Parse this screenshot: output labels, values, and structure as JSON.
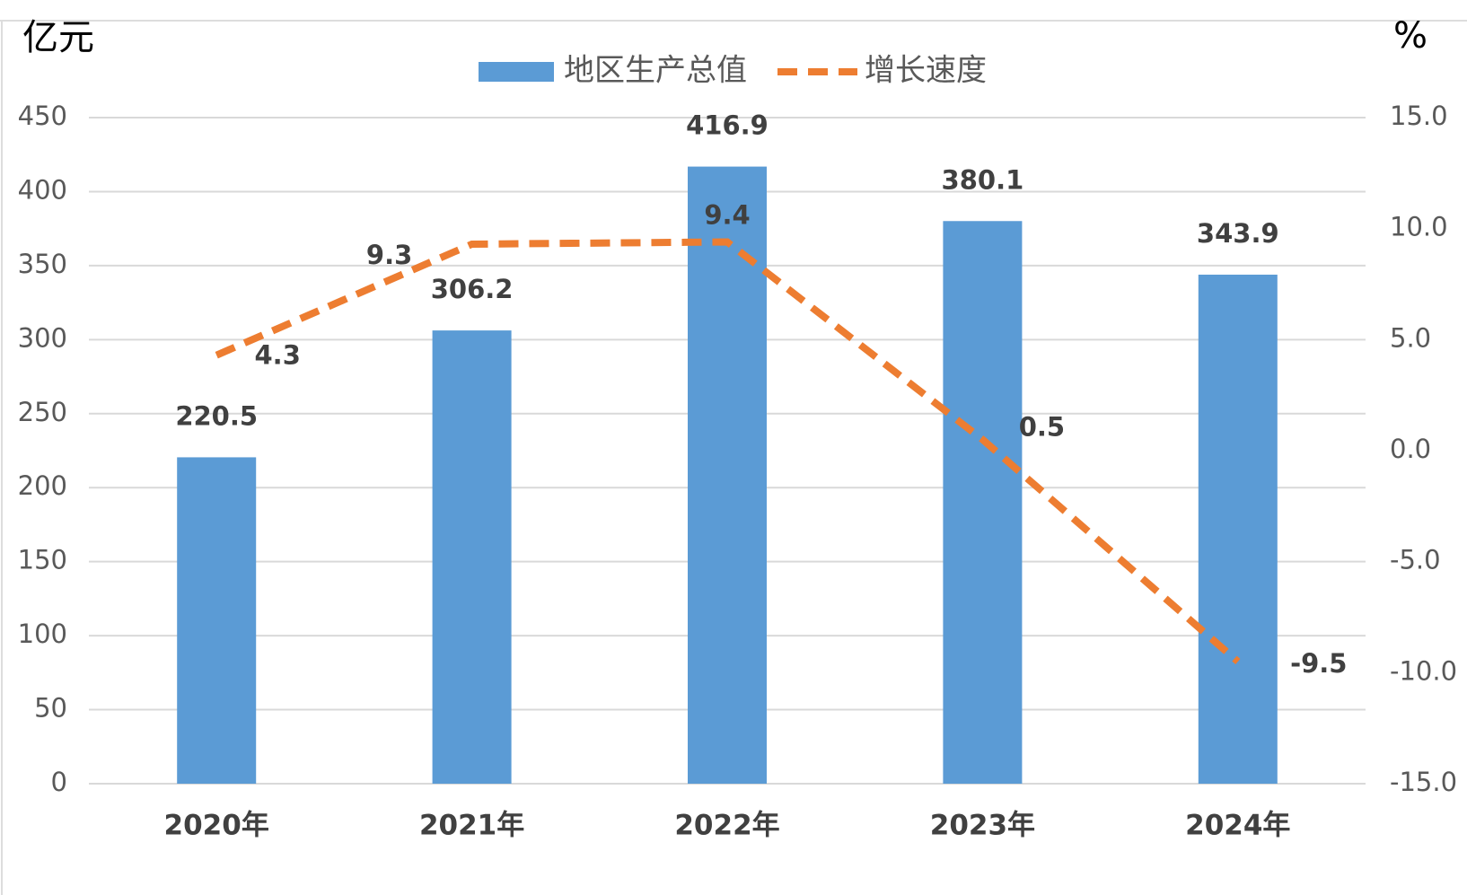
{
  "chart_data": {
    "type": "bar",
    "y_label": "亿元",
    "y2_label": "%",
    "categories": [
      "2020年",
      "2021年",
      "2022年",
      "2023年",
      "2024年"
    ],
    "series": [
      {
        "name": "地区生产总值",
        "type": "bar",
        "color": "#5b9bd5",
        "values": [
          220.5,
          306.2,
          416.9,
          380.1,
          343.9
        ]
      },
      {
        "name": "增长速度",
        "type": "line",
        "axis": "y2",
        "color": "#ed7d31",
        "dashed": true,
        "values": [
          4.3,
          9.3,
          9.4,
          0.5,
          -9.5
        ]
      }
    ],
    "ylim": [
      0,
      450
    ],
    "yticks": [
      0,
      50,
      100,
      150,
      200,
      250,
      300,
      350,
      400,
      450
    ],
    "y2lim": [
      -15,
      15
    ],
    "y2ticks": [
      {
        "value": -15,
        "label": "-15.0"
      },
      {
        "value": -10,
        "label": "-10.0"
      },
      {
        "value": -5,
        "label": "-5.0"
      },
      {
        "value": 0,
        "label": "0.0"
      },
      {
        "value": 5,
        "label": "5.0"
      },
      {
        "value": 10,
        "label": "10.0"
      },
      {
        "value": 15,
        "label": "15.0"
      }
    ],
    "grid": true,
    "legend": "top"
  }
}
